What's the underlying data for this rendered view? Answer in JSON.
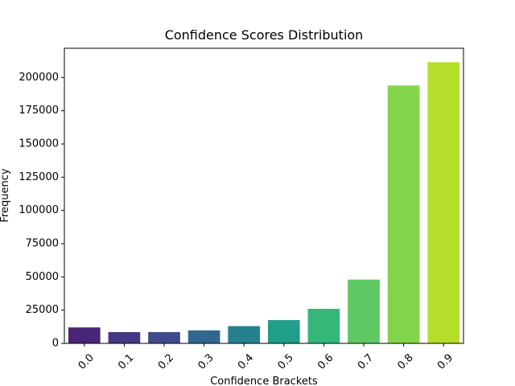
{
  "chart_data": {
    "type": "bar",
    "title": "Confidence Scores Distribution",
    "xlabel": "Confidence Brackets",
    "ylabel": "Frequency",
    "categories": [
      "0.0",
      "0.1",
      "0.2",
      "0.3",
      "0.4",
      "0.5",
      "0.6",
      "0.7",
      "0.8",
      "0.9"
    ],
    "values": [
      12000,
      8500,
      8500,
      9800,
      13000,
      17500,
      26000,
      48000,
      194000,
      211500
    ],
    "ylim": [
      0,
      222000
    ],
    "yticks": [
      0,
      25000,
      50000,
      75000,
      100000,
      125000,
      150000,
      175000,
      200000
    ],
    "colors": [
      "#482576",
      "#443983",
      "#3f4a8a",
      "#31678e",
      "#26818e",
      "#1f9e89",
      "#35b779",
      "#5ec962",
      "#84d44b",
      "#b5de2b"
    ],
    "grid": false,
    "legend": "none"
  }
}
